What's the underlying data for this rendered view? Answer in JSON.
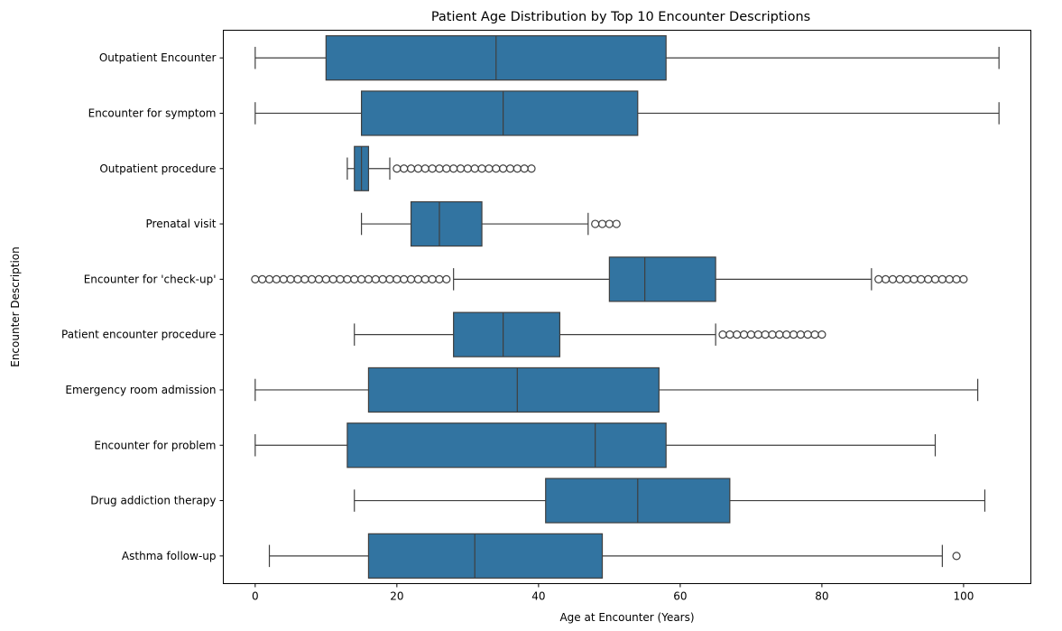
{
  "chart_data": {
    "type": "boxplot",
    "orientation": "horizontal",
    "title": "Patient Age Distribution by Top 10 Encounter Descriptions",
    "xlabel": "Age at Encounter (Years)",
    "ylabel": "Encounter Description",
    "xlim": [
      -4.5,
      109.5
    ],
    "xticks": [
      0,
      20,
      40,
      60,
      80,
      100
    ],
    "grid": false,
    "box_color": "#3274a1",
    "line_color": "#3f3f3f",
    "categories": [
      {
        "label": "Outpatient Encounter",
        "whislo": 0,
        "q1": 10,
        "median": 34,
        "q3": 58,
        "whishi": 105,
        "fliers": []
      },
      {
        "label": "Encounter for symptom",
        "whislo": 0,
        "q1": 15,
        "median": 35,
        "q3": 54,
        "whishi": 105,
        "fliers": []
      },
      {
        "label": "Outpatient procedure",
        "whislo": 13,
        "q1": 14,
        "median": 15,
        "q3": 16,
        "whishi": 19,
        "fliers": [
          20,
          21,
          22,
          23,
          24,
          25,
          26,
          27,
          28,
          29,
          30,
          31,
          32,
          33,
          34,
          35,
          36,
          37,
          38,
          39
        ]
      },
      {
        "label": "Prenatal visit",
        "whislo": 15,
        "q1": 22,
        "median": 26,
        "q3": 32,
        "whishi": 47,
        "fliers": [
          48,
          49,
          50,
          51
        ]
      },
      {
        "label": "Encounter for 'check-up'",
        "whislo": 28,
        "q1": 50,
        "median": 55,
        "q3": 65,
        "whishi": 87,
        "fliers": [
          0,
          1,
          2,
          3,
          4,
          5,
          6,
          7,
          8,
          9,
          10,
          11,
          12,
          13,
          14,
          15,
          16,
          17,
          18,
          19,
          20,
          21,
          22,
          23,
          24,
          25,
          26,
          27,
          88,
          89,
          90,
          91,
          92,
          93,
          94,
          95,
          96,
          97,
          98,
          99,
          100
        ]
      },
      {
        "label": "Patient encounter procedure",
        "whislo": 14,
        "q1": 28,
        "median": 35,
        "q3": 43,
        "whishi": 65,
        "fliers": [
          66,
          67,
          68,
          69,
          70,
          71,
          72,
          73,
          74,
          75,
          76,
          77,
          78,
          79,
          80
        ]
      },
      {
        "label": "Emergency room admission",
        "whislo": 0,
        "q1": 16,
        "median": 37,
        "q3": 57,
        "whishi": 102,
        "fliers": []
      },
      {
        "label": "Encounter for problem",
        "whislo": 0,
        "q1": 13,
        "median": 48,
        "q3": 58,
        "whishi": 96,
        "fliers": []
      },
      {
        "label": "Drug addiction therapy",
        "whislo": 14,
        "q1": 41,
        "median": 54,
        "q3": 67,
        "whishi": 103,
        "fliers": []
      },
      {
        "label": "Asthma follow-up",
        "whislo": 2,
        "q1": 16,
        "median": 31,
        "q3": 49,
        "whishi": 97,
        "fliers": [
          99
        ]
      }
    ]
  }
}
